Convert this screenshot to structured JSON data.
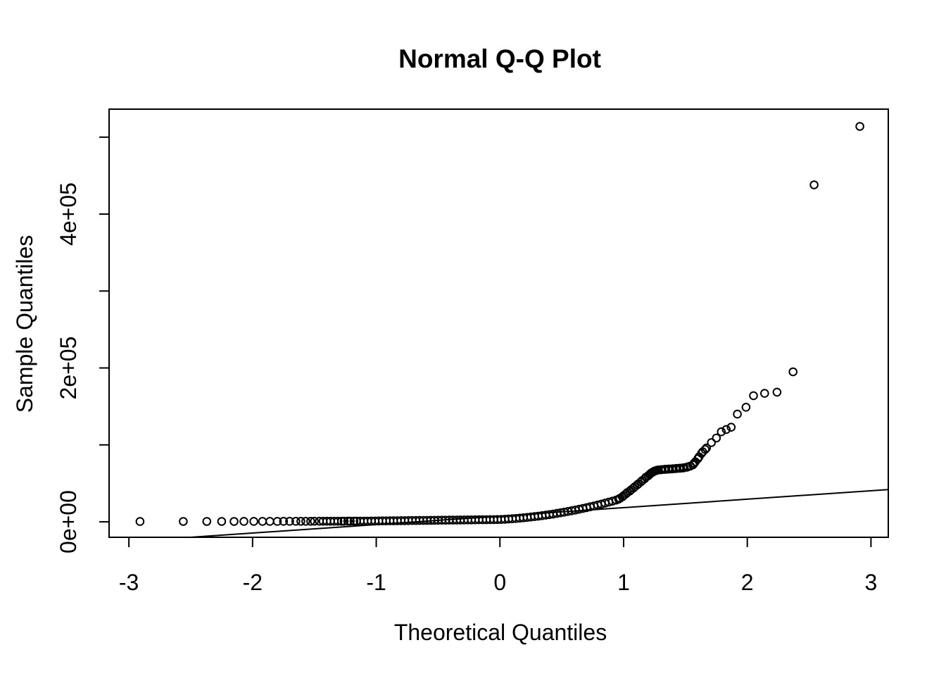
{
  "page": {
    "background": "#ffffff",
    "foreground": "#000000"
  },
  "chart_data": {
    "type": "scatter",
    "title": "Normal Q-Q Plot",
    "xlabel": "Theoretical Quantiles",
    "ylabel": "Sample Quantiles",
    "xlim": [
      -3.16,
      3.14
    ],
    "ylim": [
      -20100,
      536400
    ],
    "x_ticks": [
      -3,
      -2,
      -1,
      0,
      1,
      2,
      3
    ],
    "x_tick_labels": [
      "-3",
      "-2",
      "-1",
      "0",
      "1",
      "2",
      "3"
    ],
    "y_ticks": [
      0,
      100000,
      200000,
      300000,
      400000,
      500000
    ],
    "y_tick_labels": [
      "0e+00",
      "",
      "2e+05",
      "",
      "4e+05",
      ""
    ],
    "grid": false,
    "legend": null,
    "marker": "open-circle",
    "marker_color": "#000000",
    "line_color": "#000000",
    "reference_line": {
      "slope": 11000,
      "intercept": 7400
    },
    "points": [
      [
        -2.91,
        400
      ],
      [
        -2.56,
        450
      ],
      [
        -2.37,
        480
      ],
      [
        -2.25,
        500
      ],
      [
        -2.15,
        520
      ],
      [
        -2.07,
        540
      ],
      [
        -1.99,
        560
      ],
      [
        -1.92,
        580
      ],
      [
        -1.86,
        600
      ],
      [
        -1.8,
        620
      ],
      [
        -1.75,
        640
      ],
      [
        -1.7,
        660
      ],
      [
        -1.65,
        680
      ],
      [
        -1.61,
        700
      ],
      [
        -1.57,
        710
      ],
      [
        -1.53,
        720
      ],
      [
        -1.5,
        730
      ],
      [
        -1.46,
        740
      ],
      [
        -1.43,
        750
      ],
      [
        -1.4,
        760
      ],
      [
        -1.37,
        770
      ],
      [
        -1.34,
        780
      ],
      [
        -1.31,
        790
      ],
      [
        -1.28,
        800
      ],
      [
        -1.26,
        810
      ],
      [
        -1.23,
        820
      ],
      [
        -1.21,
        830
      ],
      [
        -1.18,
        840
      ],
      [
        -1.16,
        850
      ],
      [
        -1.13,
        860
      ],
      [
        -1.1,
        900
      ],
      [
        -1.07,
        960
      ],
      [
        -1.04,
        1010
      ],
      [
        -1.01,
        1070
      ],
      [
        -0.98,
        1130
      ],
      [
        -0.95,
        1190
      ],
      [
        -0.92,
        1240
      ],
      [
        -0.89,
        1300
      ],
      [
        -0.86,
        1360
      ],
      [
        -0.83,
        1410
      ],
      [
        -0.8,
        1470
      ],
      [
        -0.77,
        1530
      ],
      [
        -0.74,
        1580
      ],
      [
        -0.71,
        1640
      ],
      [
        -0.68,
        1700
      ],
      [
        -0.65,
        1760
      ],
      [
        -0.62,
        1810
      ],
      [
        -0.59,
        1870
      ],
      [
        -0.56,
        1930
      ],
      [
        -0.53,
        1980
      ],
      [
        -0.5,
        2040
      ],
      [
        -0.47,
        2100
      ],
      [
        -0.44,
        2150
      ],
      [
        -0.41,
        2210
      ],
      [
        -0.38,
        2270
      ],
      [
        -0.35,
        2330
      ],
      [
        -0.32,
        2380
      ],
      [
        -0.29,
        2440
      ],
      [
        -0.26,
        2500
      ],
      [
        -0.23,
        2550
      ],
      [
        -0.2,
        2610
      ],
      [
        -0.17,
        2670
      ],
      [
        -0.14,
        2720
      ],
      [
        -0.11,
        2780
      ],
      [
        -0.08,
        2840
      ],
      [
        -0.05,
        2900
      ],
      [
        -0.02,
        2950
      ],
      [
        0.01,
        3080
      ],
      [
        0.04,
        3350
      ],
      [
        0.07,
        3660
      ],
      [
        0.1,
        4000
      ],
      [
        0.13,
        4380
      ],
      [
        0.16,
        4790
      ],
      [
        0.19,
        5240
      ],
      [
        0.22,
        5730
      ],
      [
        0.25,
        6250
      ],
      [
        0.28,
        6810
      ],
      [
        0.31,
        7400
      ],
      [
        0.34,
        8030
      ],
      [
        0.37,
        8700
      ],
      [
        0.4,
        9400
      ],
      [
        0.43,
        10140
      ],
      [
        0.46,
        10910
      ],
      [
        0.49,
        11720
      ],
      [
        0.52,
        12570
      ],
      [
        0.55,
        13450
      ],
      [
        0.58,
        14370
      ],
      [
        0.61,
        15320
      ],
      [
        0.64,
        16310
      ],
      [
        0.67,
        17340
      ],
      [
        0.7,
        18400
      ],
      [
        0.73,
        19500
      ],
      [
        0.76,
        20630
      ],
      [
        0.79,
        21800
      ],
      [
        0.82,
        23010
      ],
      [
        0.85,
        24250
      ],
      [
        0.88,
        25530
      ],
      [
        0.91,
        26840
      ],
      [
        0.94,
        28190
      ],
      [
        0.96,
        29500
      ],
      [
        0.97,
        30500
      ],
      [
        0.99,
        32500
      ],
      [
        1.0,
        34000
      ],
      [
        1.02,
        36500
      ],
      [
        1.03,
        38000
      ],
      [
        1.05,
        40000
      ],
      [
        1.06,
        41500
      ],
      [
        1.08,
        44000
      ],
      [
        1.09,
        45500
      ],
      [
        1.11,
        48000
      ],
      [
        1.12,
        49500
      ],
      [
        1.14,
        52000
      ],
      [
        1.15,
        53500
      ],
      [
        1.17,
        56000
      ],
      [
        1.18,
        58000
      ],
      [
        1.2,
        60000
      ],
      [
        1.21,
        61500
      ],
      [
        1.22,
        63000
      ],
      [
        1.23,
        64000
      ],
      [
        1.24,
        65000
      ],
      [
        1.25,
        66000
      ],
      [
        1.26,
        66500
      ],
      [
        1.27,
        67000
      ],
      [
        1.28,
        67400
      ],
      [
        1.3,
        67800
      ],
      [
        1.31,
        67900
      ],
      [
        1.33,
        68200
      ],
      [
        1.34,
        68300
      ],
      [
        1.36,
        68500
      ],
      [
        1.37,
        68600
      ],
      [
        1.39,
        68800
      ],
      [
        1.4,
        69000
      ],
      [
        1.42,
        69200
      ],
      [
        1.43,
        69400
      ],
      [
        1.45,
        69600
      ],
      [
        1.46,
        69800
      ],
      [
        1.48,
        70000
      ],
      [
        1.49,
        70300
      ],
      [
        1.51,
        71000
      ],
      [
        1.52,
        71500
      ],
      [
        1.54,
        72500
      ],
      [
        1.56,
        74000
      ],
      [
        1.57,
        76000
      ],
      [
        1.58,
        78000
      ],
      [
        1.6,
        82000
      ],
      [
        1.61,
        84500
      ],
      [
        1.63,
        89000
      ],
      [
        1.64,
        91000
      ],
      [
        1.66,
        94000
      ],
      [
        1.67,
        96000
      ],
      [
        1.71,
        103000
      ],
      [
        1.75,
        109000
      ],
      [
        1.79,
        117000
      ],
      [
        1.83,
        120000
      ],
      [
        1.87,
        123000
      ],
      [
        1.92,
        140000
      ],
      [
        1.99,
        149000
      ],
      [
        2.05,
        164000
      ],
      [
        2.14,
        167000
      ],
      [
        2.24,
        168500
      ],
      [
        2.37,
        195000
      ],
      [
        2.54,
        438000
      ],
      [
        2.91,
        514000
      ]
    ]
  }
}
